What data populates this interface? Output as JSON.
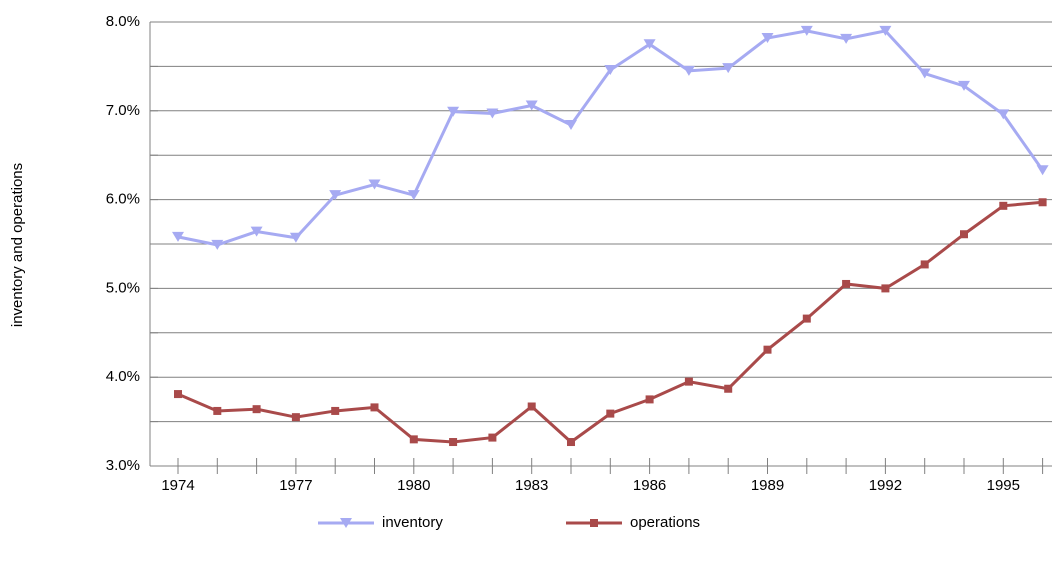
{
  "chart_data": {
    "type": "line",
    "y_label": "inventory and operations",
    "categories": [
      "1974",
      null,
      null,
      "1977",
      null,
      null,
      "1980",
      null,
      null,
      "1983",
      null,
      null,
      "1986",
      null,
      null,
      "1989",
      null,
      null,
      "1992",
      null,
      null,
      "1995",
      null
    ],
    "series": [
      {
        "name": "inventory",
        "color": "#a6aaf2",
        "marker": "triangle-down",
        "values": [
          5.58,
          5.49,
          5.64,
          5.57,
          6.05,
          6.17,
          6.05,
          6.99,
          6.97,
          7.06,
          6.84,
          7.46,
          7.75,
          7.45,
          7.48,
          7.82,
          7.9,
          7.81,
          7.9,
          7.42,
          7.28,
          6.96,
          6.33
        ]
      },
      {
        "name": "operations",
        "color": "#a94a4a",
        "marker": "square",
        "values": [
          3.81,
          3.62,
          3.64,
          3.55,
          3.62,
          3.66,
          3.3,
          3.27,
          3.32,
          3.67,
          3.27,
          3.59,
          3.75,
          3.95,
          3.87,
          4.31,
          4.66,
          5.05,
          5.0,
          5.27,
          5.61,
          5.93,
          5.97
        ]
      }
    ],
    "ylim": [
      3,
      8
    ],
    "yticks": [
      {
        "value": 3,
        "label": "3.0%"
      },
      {
        "value": 4,
        "label": "4.0%"
      },
      {
        "value": 5,
        "label": "5.0%"
      },
      {
        "value": 6,
        "label": "6.0%"
      },
      {
        "value": 7,
        "label": "7.0%"
      },
      {
        "value": 8,
        "label": "8.0%"
      }
    ],
    "grid": true,
    "legend": "bottom"
  }
}
